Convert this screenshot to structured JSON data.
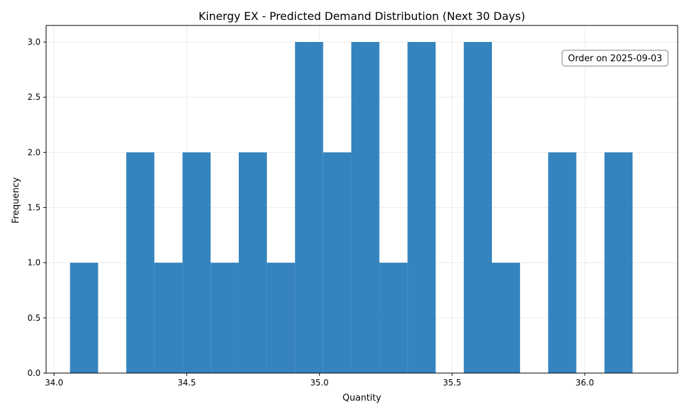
{
  "chart_data": {
    "type": "bar",
    "subtype": "histogram",
    "title": "Kinergy EX - Predicted Demand Distribution (Next 30 Days)",
    "xlabel": "Quantity",
    "ylabel": "Frequency",
    "xlim": [
      33.97,
      36.35
    ],
    "ylim": [
      0,
      3.15
    ],
    "x_ticks": [
      34.0,
      34.5,
      35.0,
      35.5,
      36.0
    ],
    "x_tick_labels": [
      "34.0",
      "34.5",
      "35.0",
      "35.5",
      "36.0"
    ],
    "y_ticks": [
      0,
      0.5,
      1.0,
      1.5,
      2.0,
      2.5,
      3.0
    ],
    "y_tick_labels": [
      "0.0",
      "0.5",
      "1.0",
      "1.5",
      "2.0",
      "2.5",
      "3.0"
    ],
    "bins": [
      {
        "start": 34.06,
        "end": 34.166,
        "count": 1
      },
      {
        "start": 34.166,
        "end": 34.272,
        "count": 0
      },
      {
        "start": 34.272,
        "end": 34.378,
        "count": 2
      },
      {
        "start": 34.378,
        "end": 34.484,
        "count": 1
      },
      {
        "start": 34.484,
        "end": 34.59,
        "count": 2
      },
      {
        "start": 34.59,
        "end": 34.696,
        "count": 1
      },
      {
        "start": 34.696,
        "end": 34.802,
        "count": 2
      },
      {
        "start": 34.802,
        "end": 34.908,
        "count": 1
      },
      {
        "start": 34.908,
        "end": 35.014,
        "count": 3
      },
      {
        "start": 35.014,
        "end": 35.12,
        "count": 2
      },
      {
        "start": 35.12,
        "end": 35.226,
        "count": 3
      },
      {
        "start": 35.226,
        "end": 35.332,
        "count": 1
      },
      {
        "start": 35.332,
        "end": 35.438,
        "count": 3
      },
      {
        "start": 35.438,
        "end": 35.544,
        "count": 0
      },
      {
        "start": 35.544,
        "end": 35.65,
        "count": 3
      },
      {
        "start": 35.65,
        "end": 35.756,
        "count": 1
      },
      {
        "start": 35.756,
        "end": 35.862,
        "count": 0
      },
      {
        "start": 35.862,
        "end": 35.968,
        "count": 2
      },
      {
        "start": 35.968,
        "end": 36.074,
        "count": 0
      },
      {
        "start": 36.074,
        "end": 36.18,
        "count": 2
      }
    ],
    "bar_color": "#3584bf",
    "grid": true,
    "annotation": {
      "text": "Order on 2025-09-03",
      "placement": "top-right"
    }
  }
}
